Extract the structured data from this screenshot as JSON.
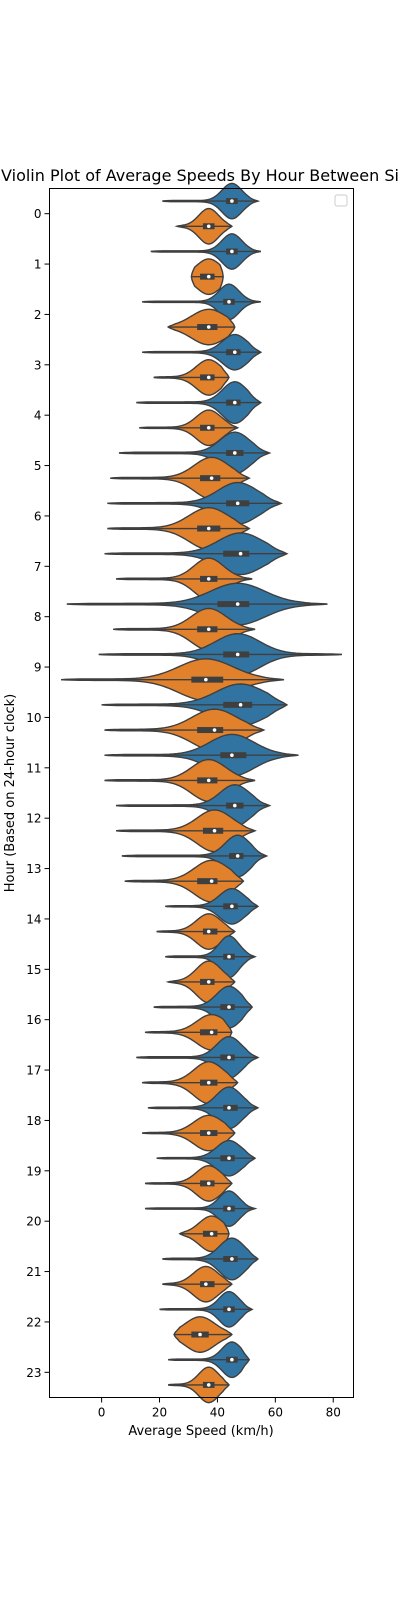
{
  "chart_data": {
    "type": "violin",
    "orientation": "horizontal",
    "title": "Violin Plot of Average Speeds By Hour Between Si",
    "xlabel": "Average Speed (km/h)",
    "ylabel": "Hour (Based on 24-hour clock)",
    "xlim": [
      -18,
      87
    ],
    "xticks": [
      0,
      20,
      40,
      60,
      80
    ],
    "categories": [
      "0",
      "1",
      "2",
      "3",
      "4",
      "5",
      "6",
      "7",
      "8",
      "9",
      "10",
      "11",
      "12",
      "13",
      "14",
      "15",
      "16",
      "17",
      "18",
      "19",
      "20",
      "21",
      "22",
      "23"
    ],
    "legend": {
      "placement": "upper right",
      "entries": []
    },
    "colors": {
      "series_a": "#3274a1",
      "series_b": "#e1812c",
      "outline": "#3f3f3f"
    },
    "series": [
      {
        "color": "#3274a1",
        "min": [
          21,
          17,
          14,
          14,
          12,
          6,
          2,
          1,
          -12,
          -1,
          0,
          1,
          5,
          7,
          22,
          22,
          18,
          12,
          16,
          19,
          15,
          21,
          20,
          23
        ],
        "max": [
          54,
          55,
          55,
          55,
          55,
          58,
          62,
          64,
          78,
          83,
          64,
          68,
          58,
          57,
          54,
          53,
          52,
          54,
          54,
          53,
          53,
          54,
          52,
          51
        ],
        "median": [
          45,
          45,
          44,
          46,
          46,
          46,
          47,
          48,
          47,
          47,
          48,
          45,
          46,
          47,
          45,
          44,
          44,
          44,
          44,
          44,
          44,
          45,
          44,
          45
        ],
        "q1": [
          43,
          43,
          42,
          43,
          43,
          43,
          43,
          42,
          40,
          42,
          42,
          41,
          43,
          44,
          42,
          42,
          41,
          41,
          42,
          41,
          42,
          42,
          42,
          43
        ],
        "q3": [
          47,
          47,
          46,
          48,
          48,
          49,
          51,
          51,
          51,
          51,
          52,
          50,
          49,
          49,
          47,
          46,
          46,
          46,
          47,
          46,
          46,
          47,
          46,
          47
        ],
        "width": [
          0.34,
          0.34,
          0.34,
          0.34,
          0.4,
          0.4,
          0.4,
          0.4,
          0.4,
          0.4,
          0.4,
          0.4,
          0.4,
          0.4,
          0.34,
          0.4,
          0.4,
          0.4,
          0.4,
          0.34,
          0.34,
          0.4,
          0.34,
          0.34
        ]
      },
      {
        "color": "#e1812c",
        "min": [
          26,
          31,
          23,
          18,
          13,
          3,
          2,
          5,
          4,
          -14,
          1,
          1,
          5,
          8,
          19,
          23,
          15,
          14,
          14,
          15,
          27,
          21,
          25,
          23
        ],
        "max": [
          45,
          42,
          46,
          44,
          47,
          51,
          51,
          52,
          53,
          63,
          56,
          53,
          53,
          49,
          46,
          46,
          45,
          47,
          46,
          45,
          44,
          45,
          45,
          44
        ],
        "median": [
          37,
          37,
          37,
          37,
          37,
          38,
          37,
          37,
          37,
          36,
          39,
          37,
          39,
          38,
          37,
          37,
          38,
          37,
          37,
          37,
          38,
          36,
          34,
          37
        ],
        "q1": [
          35,
          34,
          33,
          34,
          34,
          34,
          33,
          34,
          33,
          31,
          33,
          33,
          35,
          33,
          35,
          34,
          34,
          34,
          34,
          34,
          35,
          34,
          31,
          35
        ],
        "q3": [
          39,
          39,
          40,
          39,
          39,
          41,
          41,
          40,
          40,
          42,
          42,
          40,
          42,
          40,
          40,
          39,
          40,
          40,
          40,
          39,
          40,
          39,
          37,
          39
        ],
        "width": [
          0.34,
          0.34,
          0.34,
          0.34,
          0.34,
          0.4,
          0.4,
          0.4,
          0.4,
          0.4,
          0.4,
          0.4,
          0.4,
          0.4,
          0.34,
          0.4,
          0.34,
          0.4,
          0.34,
          0.34,
          0.34,
          0.34,
          0.34,
          0.34
        ]
      }
    ]
  }
}
